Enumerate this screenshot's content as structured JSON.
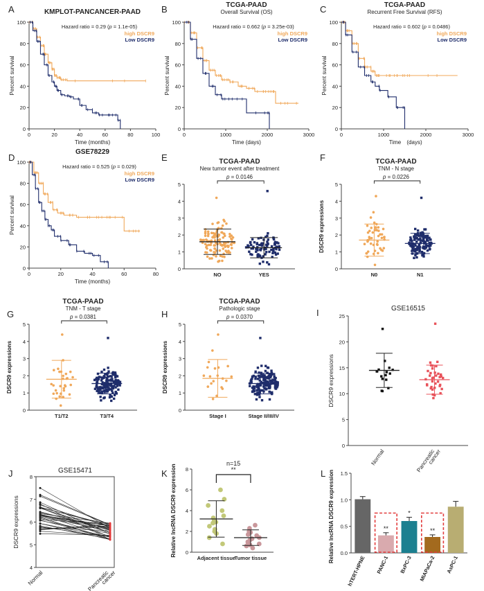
{
  "colors": {
    "orange": "#f0a85a",
    "navy": "#1f2d6b",
    "pink": "#e8525a",
    "olive": "#c2c878",
    "mauve": "#c9979b",
    "gray": "#666666",
    "red": "#e23a3a",
    "teal": "#1c8090",
    "brown": "#a36a1e",
    "tan": "#b8ad72",
    "pinkbar": "#d9aaae"
  },
  "chart_data": [
    {
      "panel": "A",
      "type": "line",
      "title": "KMPLOT-PANCANCER-PAAD",
      "hr_text": "Hazard ratio = 0.29 (",
      "p_text": "p",
      "hr_tail": " = 1.1e-05)",
      "xlabel": "Time (months)",
      "ylabel": "Percent survival",
      "xlim": [
        0,
        100
      ],
      "ylim": [
        0,
        100
      ],
      "xticks": [
        "0",
        "20",
        "40",
        "60",
        "80",
        "100"
      ],
      "yticks": [
        "0",
        "20",
        "40",
        "60",
        "80",
        "100"
      ],
      "legend": [
        "high DSCR9",
        "Low DSCR9"
      ],
      "series": [
        {
          "name": "high DSCR9",
          "x": [
            0,
            3,
            6,
            9,
            12,
            15,
            18,
            20,
            22,
            25,
            30,
            92
          ],
          "y": [
            100,
            94,
            86,
            78,
            70,
            62,
            56,
            50,
            48,
            46,
            45,
            45
          ]
        },
        {
          "name": "Low DSCR9",
          "x": [
            0,
            3,
            6,
            9,
            12,
            15,
            18,
            20,
            22,
            25,
            28,
            32,
            35,
            40,
            45,
            50,
            55,
            60,
            65,
            70,
            72
          ],
          "y": [
            100,
            92,
            82,
            70,
            60,
            50,
            44,
            40,
            36,
            32,
            31,
            30,
            28,
            22,
            18,
            15,
            13,
            13,
            13,
            8,
            0
          ]
        }
      ]
    },
    {
      "panel": "B",
      "type": "line",
      "title": "TCGA-PAAD",
      "subtitle": "Overall Survival (OS)",
      "hr_text": "Hazard ratio = 0.662 (",
      "p_text": "p",
      "hr_tail": " = 3.25e-03)",
      "xlabel": "Time (days)",
      "ylabel": "Percent survival",
      "xlim": [
        0,
        3000
      ],
      "ylim": [
        0,
        100
      ],
      "xticks": [
        "0",
        "1000",
        "2000",
        "3000"
      ],
      "yticks": [
        "0",
        "20",
        "40",
        "60",
        "80",
        "100"
      ],
      "legend": [
        "high DSCR9",
        "Low DSCR9"
      ],
      "series": [
        {
          "name": "high DSCR9",
          "x": [
            0,
            150,
            300,
            450,
            600,
            750,
            900,
            1100,
            1300,
            1500,
            1700,
            2000,
            2200,
            2750
          ],
          "y": [
            100,
            90,
            76,
            64,
            55,
            50,
            46,
            44,
            40,
            38,
            35,
            35,
            24,
            24
          ]
        },
        {
          "name": "Low DSCR9",
          "x": [
            0,
            150,
            300,
            450,
            600,
            750,
            900,
            1000,
            1200,
            1500,
            2000,
            2050
          ],
          "y": [
            100,
            84,
            66,
            52,
            40,
            32,
            28,
            28,
            28,
            15,
            15,
            0
          ]
        }
      ]
    },
    {
      "panel": "C",
      "type": "line",
      "title": "TCGA-PAAD",
      "subtitle": "Recurrent Free Survival (RFS)",
      "hr_text": "Hazard ratio = 0.602 (",
      "p_text": "p",
      "hr_tail": " = 0.0486)",
      "xlabel": "Time",
      "xlabel_unit": "(days)",
      "ylabel": "Percent survival",
      "xlim": [
        0,
        3000
      ],
      "ylim": [
        0,
        100
      ],
      "xticks": [
        "0",
        "1000",
        "2000",
        "3000"
      ],
      "yticks": [
        "0",
        "20",
        "40",
        "60",
        "80",
        "100"
      ],
      "legend": [
        "high DSCR9",
        "Low DSCR9"
      ],
      "series": [
        {
          "name": "high DSCR9",
          "x": [
            0,
            100,
            250,
            400,
            550,
            700,
            800,
            1000,
            1300,
            1500,
            2750
          ],
          "y": [
            100,
            92,
            80,
            66,
            58,
            54,
            50,
            50,
            50,
            50,
            50
          ]
        },
        {
          "name": "Low DSCR9",
          "x": [
            0,
            100,
            250,
            400,
            550,
            700,
            800,
            900,
            1100,
            1300,
            1350,
            1500
          ],
          "y": [
            100,
            88,
            72,
            58,
            50,
            44,
            40,
            36,
            30,
            20,
            20,
            0
          ]
        }
      ]
    },
    {
      "panel": "D",
      "type": "line",
      "title": "GSE78229",
      "hr_text": "Hazard ratio = 0.525 (",
      "p_text": "p",
      "hr_tail": " = 0.029)",
      "xlabel": "Time (months)",
      "ylabel": "Percent survival",
      "xlim": [
        0,
        80
      ],
      "ylim": [
        0,
        100
      ],
      "xticks": [
        "0",
        "20",
        "40",
        "60",
        "80"
      ],
      "yticks": [
        "0",
        "20",
        "40",
        "60",
        "80",
        "100"
      ],
      "legend": [
        "high DSCR9",
        "Low DSCR9"
      ],
      "series": [
        {
          "name": "high DSCR9",
          "x": [
            0,
            3,
            6,
            9,
            12,
            15,
            18,
            22,
            30,
            40,
            50,
            60,
            70
          ],
          "y": [
            100,
            90,
            80,
            70,
            62,
            55,
            52,
            50,
            48,
            48,
            48,
            35,
            35
          ]
        },
        {
          "name": "Low DSCR9",
          "x": [
            0,
            2,
            4,
            6,
            8,
            10,
            12,
            14,
            16,
            20,
            25,
            30,
            35,
            40,
            45,
            50
          ],
          "y": [
            100,
            88,
            75,
            62,
            54,
            46,
            40,
            36,
            30,
            26,
            22,
            16,
            14,
            12,
            6,
            0
          ]
        }
      ]
    },
    {
      "panel": "E",
      "type": "scatter",
      "title": "TCGA-PAAD",
      "subtitle": "New tumor event after treatment",
      "p_label": "p",
      "p_value": " = 0.0146",
      "ylim": [
        0,
        5
      ],
      "yticks": [
        "0",
        "1",
        "2",
        "3",
        "4",
        "5"
      ],
      "categories": [
        "NO",
        "YES"
      ],
      "means": [
        1.6,
        1.25
      ],
      "sd": [
        0.75,
        0.6
      ],
      "n": [
        120,
        90
      ],
      "max": [
        4.2,
        4.6
      ]
    },
    {
      "panel": "F",
      "type": "scatter",
      "title": "TCGA-PAAD",
      "subtitle": "TNM - N stage",
      "p_label": "p",
      "p_value": " = 0.0226",
      "ylabel": "DSCR9 expressions",
      "ylim": [
        0,
        5
      ],
      "yticks": [
        "0",
        "1",
        "2",
        "3",
        "4",
        "5"
      ],
      "categories": [
        "N0",
        "N1"
      ],
      "means": [
        1.7,
        1.5
      ],
      "sd": [
        0.95,
        0.6
      ],
      "n": [
        48,
        130
      ],
      "max": [
        4.3,
        4.2
      ]
    },
    {
      "panel": "G",
      "type": "scatter",
      "title": "TCGA-PAAD",
      "subtitle": "TNM - T stage",
      "p_label": "p",
      "p_value": " = 0.0381",
      "ylabel": "DSCR9 expressions",
      "ylim": [
        0,
        5
      ],
      "yticks": [
        "0",
        "1",
        "2",
        "3",
        "4",
        "5"
      ],
      "categories": [
        "T1/T2",
        "T3/T4"
      ],
      "means": [
        1.8,
        1.55
      ],
      "sd": [
        1.1,
        0.6
      ],
      "n": [
        30,
        150
      ],
      "max": [
        4.4,
        4.2
      ]
    },
    {
      "panel": "H",
      "type": "scatter",
      "title": "TCGA-PAAD",
      "subtitle": "Pathologic stage",
      "p_label": "p",
      "p_value": " = 0.0370",
      "ylabel": "DSCR9 expressions",
      "ylim": [
        0,
        5
      ],
      "yticks": [
        "0",
        "1",
        "2",
        "3",
        "4",
        "5"
      ],
      "categories": [
        "Stage I",
        "Stage II/III/IV"
      ],
      "means": [
        1.85,
        1.55
      ],
      "sd": [
        1.1,
        0.6
      ],
      "n": [
        20,
        160
      ],
      "max": [
        4.4,
        4.2
      ]
    },
    {
      "panel": "I",
      "type": "scatter",
      "title": "GSE16515",
      "ylabel": "DSCR9 expressions",
      "ylim": [
        0,
        25
      ],
      "yticks": [
        "0",
        "5",
        "10",
        "15",
        "20",
        "25"
      ],
      "categories": [
        "Normal",
        "Pancreatic cancer"
      ],
      "category_lines": [
        [
          "Normal"
        ],
        [
          "Pancreatic",
          "cancer"
        ]
      ],
      "means": [
        14.5,
        12.7
      ],
      "sd": [
        3.3,
        2.8
      ],
      "n": [
        16,
        36
      ],
      "max": [
        22.5,
        23.5
      ]
    },
    {
      "panel": "J",
      "type": "line",
      "title": "GSE15471",
      "ylabel": "DSCR9 expressions",
      "ylim": [
        4,
        8
      ],
      "yticks": [
        "4",
        "5",
        "6",
        "7",
        "8"
      ],
      "categories": [
        "Normal",
        "Pancreatic cancer"
      ],
      "category_lines": [
        [
          "Normal"
        ],
        [
          "Pancreatic",
          "cancer"
        ]
      ],
      "pairs": 36,
      "normal_range": [
        5.25,
        7.5
      ],
      "cancer_range": [
        5.2,
        5.95
      ]
    },
    {
      "panel": "K",
      "type": "scatter",
      "n_label": "n=15",
      "sig": "**",
      "ylabel": "Relative lncRNA DSCR9 expression",
      "ylim": [
        0,
        8
      ],
      "yticks": [
        "0",
        "2",
        "4",
        "6",
        "8"
      ],
      "categories": [
        "Adjacent tissue",
        "Tumor tissue"
      ],
      "means": [
        3.2,
        1.4
      ],
      "sd": [
        1.75,
        0.75
      ],
      "values": [
        [
          6.0,
          5.1,
          4.5,
          4.0,
          3.5,
          3.3,
          3.1,
          2.9,
          2.8,
          2.5,
          2.2,
          2.0,
          1.8,
          1.4,
          0.8
        ],
        [
          2.6,
          2.3,
          2.0,
          1.9,
          1.7,
          1.6,
          1.4,
          1.3,
          1.2,
          1.0,
          0.9,
          0.8,
          0.7,
          0.6,
          0.4
        ]
      ]
    },
    {
      "panel": "L",
      "type": "bar",
      "ylabel": "Relative lncRNA DSCR9 expression",
      "ylim": [
        0,
        1.5
      ],
      "yticks": [
        "0.0",
        "0.5",
        "1.0",
        "1.5"
      ],
      "categories": [
        "hTERT-HPNE",
        "PANC-1",
        "BxPC-3",
        "MIAPaCa-2",
        "AsPC-1"
      ],
      "values": [
        1.01,
        0.33,
        0.6,
        0.3,
        0.87
      ],
      "errors": [
        0.05,
        0.05,
        0.07,
        0.04,
        0.1
      ],
      "sig": [
        "",
        "**",
        "*",
        "**",
        ""
      ]
    }
  ]
}
